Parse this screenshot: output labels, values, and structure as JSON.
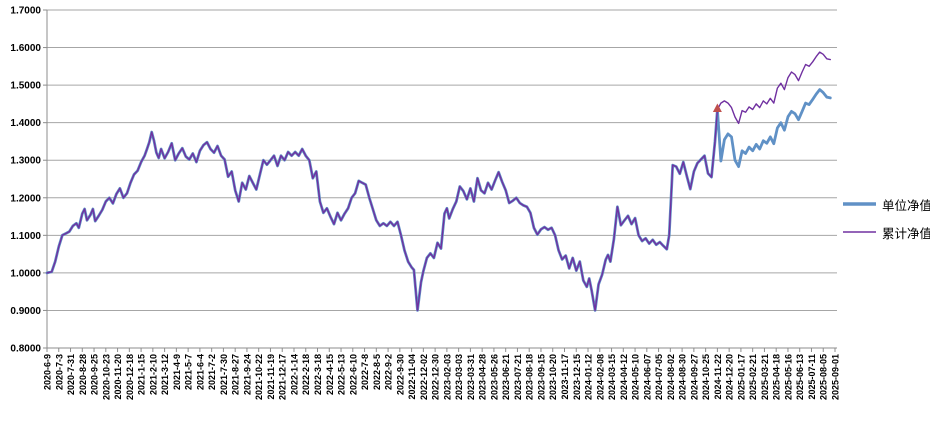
{
  "chart_data": {
    "type": "line",
    "title": "",
    "grid": true,
    "legend_position": "right",
    "y_axis": {
      "min": 0.8,
      "max": 1.7,
      "step": 0.1,
      "tick_labels": [
        "1.7000",
        "1.6000",
        "1.5000",
        "1.4000",
        "1.3000",
        "1.2000",
        "1.1000",
        "1.0000",
        "0.9000",
        "0.8000"
      ]
    },
    "x_axis": {
      "labels": [
        "2020-6-9",
        "2020-7-3",
        "2020-7-31",
        "2020-8-28",
        "2020-9-25",
        "2020-10-23",
        "2020-11-20",
        "2020-12-18",
        "2021-1-15",
        "2021-2-10",
        "2021-3-12",
        "2021-4-9",
        "2021-5-7",
        "2021-6-4",
        "2021-7-2",
        "2021-7-30",
        "2021-8-27",
        "2021-9-24",
        "2021-10-22",
        "2021-11-19",
        "2021-12-17",
        "2022-1-14",
        "2022-2-18",
        "2022-3-18",
        "2022-4-15",
        "2022-5-13",
        "2022-6-10",
        "2022-7-8",
        "2022-8-5",
        "2022-9-2",
        "2022-9-30",
        "2022-11-04",
        "2022-12-02",
        "2022-12-30",
        "2023-02-03",
        "2023-03-03",
        "2023-03-31",
        "2023-04-28",
        "2023-05-26",
        "2023-06-21",
        "2023-07-21",
        "2023-08-18",
        "2023-09-15",
        "2023-10-20",
        "2023-11-17",
        "2023-12-15",
        "2024-01-12",
        "2024-02-08",
        "2024-03-15",
        "2024-04-12",
        "2024-05-10",
        "2024-06-07",
        "2024-07-05",
        "2024-08-02",
        "2024-08-30",
        "2024-09-27",
        "2024-10-25",
        "2024-11-22",
        "2024-12-20",
        "2025-01-17",
        "2025-02-21",
        "2025-03-21",
        "2025-04-18",
        "2025-05-16",
        "2025-06-13",
        "2025-07-11",
        "2025-08-05",
        "2025-09-01"
      ]
    },
    "series": [
      {
        "name": "单位净值",
        "color": "#6091C6",
        "width": 2.8,
        "points": [
          [
            0,
            1.0
          ],
          [
            0.4,
            1.003
          ],
          [
            0.7,
            1.03
          ],
          [
            1,
            1.07
          ],
          [
            1.3,
            1.1
          ],
          [
            1.6,
            1.105
          ],
          [
            1.9,
            1.11
          ],
          [
            2.2,
            1.125
          ],
          [
            2.5,
            1.132
          ],
          [
            2.7,
            1.12
          ],
          [
            3,
            1.158
          ],
          [
            3.2,
            1.17
          ],
          [
            3.4,
            1.14
          ],
          [
            3.7,
            1.155
          ],
          [
            3.9,
            1.17
          ],
          [
            4.1,
            1.138
          ],
          [
            4.4,
            1.152
          ],
          [
            4.7,
            1.168
          ],
          [
            5,
            1.19
          ],
          [
            5.3,
            1.2
          ],
          [
            5.6,
            1.185
          ],
          [
            5.9,
            1.21
          ],
          [
            6.2,
            1.225
          ],
          [
            6.5,
            1.2
          ],
          [
            6.8,
            1.212
          ],
          [
            7.1,
            1.24
          ],
          [
            7.4,
            1.262
          ],
          [
            7.7,
            1.272
          ],
          [
            8,
            1.295
          ],
          [
            8.3,
            1.312
          ],
          [
            8.5,
            1.33
          ],
          [
            8.7,
            1.348
          ],
          [
            8.9,
            1.375
          ],
          [
            9.1,
            1.352
          ],
          [
            9.3,
            1.32
          ],
          [
            9.5,
            1.306
          ],
          [
            9.7,
            1.33
          ],
          [
            10,
            1.305
          ],
          [
            10.3,
            1.322
          ],
          [
            10.6,
            1.345
          ],
          [
            10.9,
            1.3
          ],
          [
            11.2,
            1.318
          ],
          [
            11.5,
            1.332
          ],
          [
            11.8,
            1.31
          ],
          [
            12.1,
            1.302
          ],
          [
            12.4,
            1.318
          ],
          [
            12.7,
            1.295
          ],
          [
            13,
            1.325
          ],
          [
            13.3,
            1.34
          ],
          [
            13.6,
            1.348
          ],
          [
            13.9,
            1.33
          ],
          [
            14.2,
            1.32
          ],
          [
            14.5,
            1.338
          ],
          [
            14.8,
            1.312
          ],
          [
            15.1,
            1.302
          ],
          [
            15.4,
            1.256
          ],
          [
            15.7,
            1.27
          ],
          [
            16,
            1.22
          ],
          [
            16.3,
            1.19
          ],
          [
            16.6,
            1.24
          ],
          [
            16.9,
            1.222
          ],
          [
            17.2,
            1.258
          ],
          [
            17.5,
            1.24
          ],
          [
            17.8,
            1.222
          ],
          [
            18.1,
            1.262
          ],
          [
            18.4,
            1.3
          ],
          [
            18.7,
            1.288
          ],
          [
            19,
            1.3
          ],
          [
            19.3,
            1.312
          ],
          [
            19.6,
            1.285
          ],
          [
            19.9,
            1.312
          ],
          [
            20.2,
            1.3
          ],
          [
            20.5,
            1.322
          ],
          [
            20.8,
            1.312
          ],
          [
            21.1,
            1.322
          ],
          [
            21.4,
            1.312
          ],
          [
            21.7,
            1.33
          ],
          [
            22,
            1.312
          ],
          [
            22.3,
            1.3
          ],
          [
            22.6,
            1.252
          ],
          [
            22.9,
            1.27
          ],
          [
            23.2,
            1.19
          ],
          [
            23.5,
            1.16
          ],
          [
            23.8,
            1.172
          ],
          [
            24.1,
            1.15
          ],
          [
            24.4,
            1.13
          ],
          [
            24.7,
            1.16
          ],
          [
            25,
            1.14
          ],
          [
            25.3,
            1.158
          ],
          [
            25.6,
            1.172
          ],
          [
            25.9,
            1.2
          ],
          [
            26.2,
            1.212
          ],
          [
            26.5,
            1.245
          ],
          [
            26.8,
            1.24
          ],
          [
            27.1,
            1.235
          ],
          [
            27.4,
            1.2
          ],
          [
            27.7,
            1.17
          ],
          [
            28,
            1.14
          ],
          [
            28.3,
            1.125
          ],
          [
            28.6,
            1.132
          ],
          [
            28.9,
            1.125
          ],
          [
            29.2,
            1.136
          ],
          [
            29.5,
            1.125
          ],
          [
            29.8,
            1.136
          ],
          [
            30.1,
            1.1
          ],
          [
            30.4,
            1.06
          ],
          [
            30.7,
            1.03
          ],
          [
            31,
            1.015
          ],
          [
            31.2,
            1.008
          ],
          [
            31.5,
            0.9
          ],
          [
            31.8,
            0.975
          ],
          [
            32,
            1.005
          ],
          [
            32.3,
            1.04
          ],
          [
            32.6,
            1.052
          ],
          [
            32.9,
            1.04
          ],
          [
            33.2,
            1.08
          ],
          [
            33.5,
            1.065
          ],
          [
            33.8,
            1.158
          ],
          [
            34,
            1.172
          ],
          [
            34.2,
            1.145
          ],
          [
            34.5,
            1.17
          ],
          [
            34.8,
            1.19
          ],
          [
            35.1,
            1.23
          ],
          [
            35.4,
            1.218
          ],
          [
            35.7,
            1.196
          ],
          [
            36,
            1.225
          ],
          [
            36.3,
            1.19
          ],
          [
            36.6,
            1.252
          ],
          [
            36.9,
            1.22
          ],
          [
            37.2,
            1.212
          ],
          [
            37.5,
            1.24
          ],
          [
            37.8,
            1.222
          ],
          [
            38.1,
            1.246
          ],
          [
            38.4,
            1.268
          ],
          [
            38.7,
            1.242
          ],
          [
            39,
            1.22
          ],
          [
            39.3,
            1.186
          ],
          [
            39.6,
            1.192
          ],
          [
            39.9,
            1.2
          ],
          [
            40.2,
            1.186
          ],
          [
            40.5,
            1.18
          ],
          [
            40.8,
            1.176
          ],
          [
            41.1,
            1.16
          ],
          [
            41.4,
            1.12
          ],
          [
            41.7,
            1.102
          ],
          [
            42,
            1.116
          ],
          [
            42.3,
            1.122
          ],
          [
            42.6,
            1.115
          ],
          [
            42.9,
            1.12
          ],
          [
            43.2,
            1.1
          ],
          [
            43.5,
            1.06
          ],
          [
            43.8,
            1.036
          ],
          [
            44.1,
            1.046
          ],
          [
            44.4,
            1.012
          ],
          [
            44.7,
            1.04
          ],
          [
            45,
            1.006
          ],
          [
            45.3,
            1.03
          ],
          [
            45.6,
            0.98
          ],
          [
            45.9,
            0.963
          ],
          [
            46.1,
            0.985
          ],
          [
            46.3,
            0.955
          ],
          [
            46.6,
            0.9
          ],
          [
            46.9,
            0.97
          ],
          [
            47.2,
            0.995
          ],
          [
            47.5,
            1.035
          ],
          [
            47.7,
            1.048
          ],
          [
            47.9,
            1.03
          ],
          [
            48.2,
            1.09
          ],
          [
            48.5,
            1.176
          ],
          [
            48.8,
            1.127
          ],
          [
            49.1,
            1.14
          ],
          [
            49.4,
            1.152
          ],
          [
            49.7,
            1.13
          ],
          [
            50,
            1.146
          ],
          [
            50.3,
            1.1
          ],
          [
            50.6,
            1.085
          ],
          [
            50.9,
            1.092
          ],
          [
            51.2,
            1.078
          ],
          [
            51.5,
            1.088
          ],
          [
            51.8,
            1.075
          ],
          [
            52.1,
            1.082
          ],
          [
            52.4,
            1.072
          ],
          [
            52.7,
            1.063
          ],
          [
            52.9,
            1.1
          ],
          [
            53.2,
            1.287
          ],
          [
            53.5,
            1.283
          ],
          [
            53.8,
            1.264
          ],
          [
            54.1,
            1.295
          ],
          [
            54.4,
            1.258
          ],
          [
            54.7,
            1.223
          ],
          [
            55,
            1.27
          ],
          [
            55.3,
            1.292
          ],
          [
            55.6,
            1.302
          ],
          [
            55.9,
            1.312
          ],
          [
            56.2,
            1.265
          ],
          [
            56.5,
            1.255
          ],
          [
            56.8,
            1.35
          ],
          [
            57,
            1.435
          ],
          [
            57.3,
            1.298
          ],
          [
            57.6,
            1.355
          ],
          [
            57.9,
            1.37
          ],
          [
            58.2,
            1.362
          ],
          [
            58.5,
            1.3
          ],
          [
            58.8,
            1.283
          ],
          [
            59.1,
            1.325
          ],
          [
            59.4,
            1.318
          ],
          [
            59.7,
            1.335
          ],
          [
            60,
            1.325
          ],
          [
            60.3,
            1.342
          ],
          [
            60.6,
            1.33
          ],
          [
            60.9,
            1.352
          ],
          [
            61.2,
            1.345
          ],
          [
            61.5,
            1.362
          ],
          [
            61.8,
            1.344
          ],
          [
            62.1,
            1.386
          ],
          [
            62.4,
            1.4
          ],
          [
            62.7,
            1.38
          ],
          [
            63,
            1.416
          ],
          [
            63.3,
            1.43
          ],
          [
            63.6,
            1.424
          ],
          [
            63.9,
            1.408
          ],
          [
            64.2,
            1.43
          ],
          [
            64.5,
            1.452
          ],
          [
            64.8,
            1.448
          ],
          [
            65.1,
            1.462
          ],
          [
            65.4,
            1.476
          ],
          [
            65.7,
            1.488
          ],
          [
            66,
            1.48
          ],
          [
            66.3,
            1.468
          ],
          [
            66.6,
            1.466
          ]
        ]
      },
      {
        "name": "累计净值",
        "color": "#7030A0",
        "width": 1.4,
        "equals_unit_until": 57,
        "tail_points": [
          [
            57,
            1.435
          ],
          [
            57.3,
            1.452
          ],
          [
            57.6,
            1.458
          ],
          [
            57.9,
            1.452
          ],
          [
            58.2,
            1.44
          ],
          [
            58.5,
            1.415
          ],
          [
            58.8,
            1.398
          ],
          [
            59.1,
            1.432
          ],
          [
            59.4,
            1.428
          ],
          [
            59.7,
            1.442
          ],
          [
            60,
            1.435
          ],
          [
            60.3,
            1.45
          ],
          [
            60.6,
            1.44
          ],
          [
            60.9,
            1.458
          ],
          [
            61.2,
            1.45
          ],
          [
            61.5,
            1.465
          ],
          [
            61.8,
            1.452
          ],
          [
            62.1,
            1.492
          ],
          [
            62.4,
            1.505
          ],
          [
            62.7,
            1.488
          ],
          [
            63,
            1.52
          ],
          [
            63.3,
            1.535
          ],
          [
            63.6,
            1.528
          ],
          [
            63.9,
            1.512
          ],
          [
            64.2,
            1.535
          ],
          [
            64.5,
            1.555
          ],
          [
            64.8,
            1.55
          ],
          [
            65.1,
            1.562
          ],
          [
            65.4,
            1.576
          ],
          [
            65.7,
            1.588
          ],
          [
            66,
            1.582
          ],
          [
            66.3,
            1.57
          ],
          [
            66.6,
            1.568
          ]
        ]
      }
    ],
    "marker": {
      "shape": "triangle",
      "color": "#C0504D",
      "index": 57,
      "value": 1.435
    }
  },
  "legend": {
    "entries": [
      {
        "label": "单位净值"
      },
      {
        "label": "累计净值"
      }
    ]
  },
  "style_colors": {
    "gridline": "#A6A6A6",
    "axis": "#8C8C8C",
    "tick_text": "#000000",
    "background": "#FFFFFF"
  }
}
